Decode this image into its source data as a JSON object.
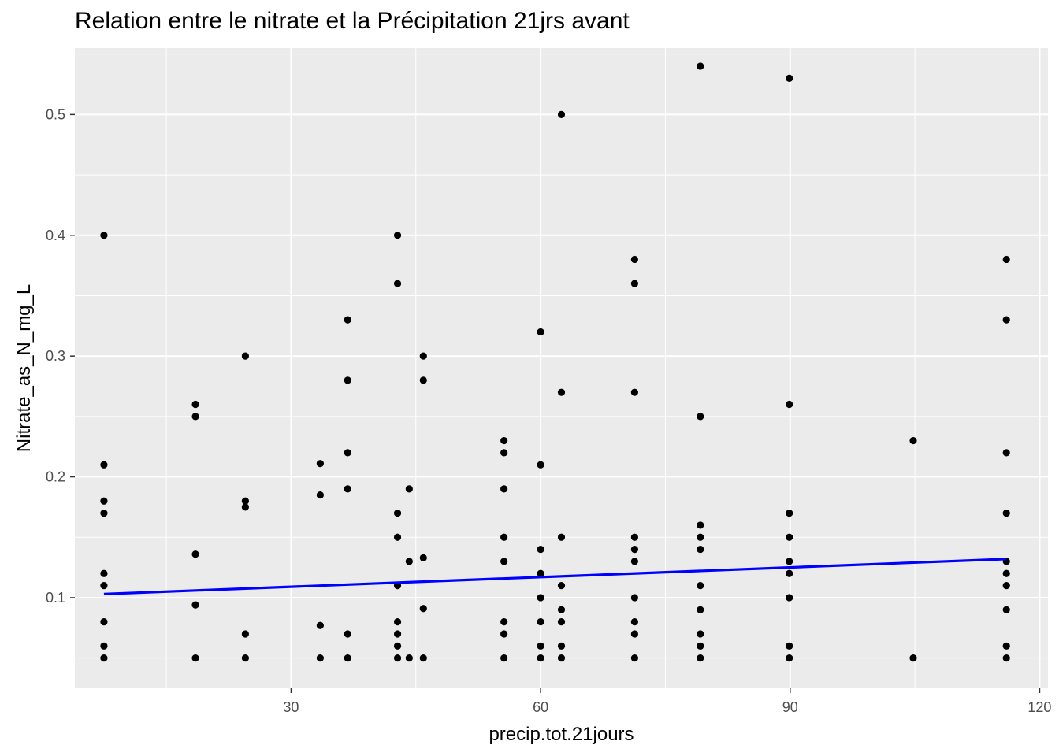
{
  "chart_data": {
    "type": "scatter",
    "title": "Relation entre le nitrate et la Précipitation 21jrs avant",
    "xlabel": "precip.tot.21jours",
    "ylabel": "Nitrate_as_N_mg_L",
    "xlim": [
      4,
      121
    ],
    "ylim": [
      0.025,
      0.555
    ],
    "x_ticks": [
      30,
      60,
      90,
      120
    ],
    "x_tick_labels": [
      "30",
      "60",
      "90",
      "120"
    ],
    "y_ticks": [
      0.1,
      0.2,
      0.3,
      0.4,
      0.5
    ],
    "y_tick_labels": [
      "0.1",
      "0.2",
      "0.3",
      "0.4",
      "0.5"
    ],
    "grid": true,
    "legend": "none",
    "colors": {
      "panel": "#ebebeb",
      "grid": "#ffffff",
      "point": "#000000",
      "trend": "#0000ff"
    },
    "points": [
      [
        7.5,
        0.4
      ],
      [
        7.5,
        0.21
      ],
      [
        7.5,
        0.18
      ],
      [
        7.5,
        0.17
      ],
      [
        7.5,
        0.12
      ],
      [
        7.5,
        0.11
      ],
      [
        7.5,
        0.08
      ],
      [
        7.5,
        0.06
      ],
      [
        7.5,
        0.05
      ],
      [
        18.5,
        0.26
      ],
      [
        18.5,
        0.25
      ],
      [
        18.5,
        0.136
      ],
      [
        18.5,
        0.094
      ],
      [
        18.5,
        0.05
      ],
      [
        24.5,
        0.3
      ],
      [
        24.5,
        0.18
      ],
      [
        24.5,
        0.175
      ],
      [
        24.5,
        0.07
      ],
      [
        24.5,
        0.05
      ],
      [
        33.5,
        0.211
      ],
      [
        33.5,
        0.185
      ],
      [
        33.5,
        0.077
      ],
      [
        33.5,
        0.05
      ],
      [
        36.8,
        0.33
      ],
      [
        36.8,
        0.28
      ],
      [
        36.8,
        0.22
      ],
      [
        36.8,
        0.19
      ],
      [
        36.8,
        0.07
      ],
      [
        36.8,
        0.05
      ],
      [
        42.8,
        0.4
      ],
      [
        42.8,
        0.36
      ],
      [
        42.8,
        0.17
      ],
      [
        42.8,
        0.15
      ],
      [
        42.8,
        0.11
      ],
      [
        42.8,
        0.08
      ],
      [
        42.8,
        0.07
      ],
      [
        42.8,
        0.06
      ],
      [
        42.8,
        0.05
      ],
      [
        44.2,
        0.19
      ],
      [
        44.2,
        0.13
      ],
      [
        44.2,
        0.05
      ],
      [
        45.9,
        0.3
      ],
      [
        45.9,
        0.28
      ],
      [
        45.9,
        0.133
      ],
      [
        45.9,
        0.091
      ],
      [
        45.9,
        0.05
      ],
      [
        55.6,
        0.23
      ],
      [
        55.6,
        0.22
      ],
      [
        55.6,
        0.19
      ],
      [
        55.6,
        0.15
      ],
      [
        55.6,
        0.13
      ],
      [
        55.6,
        0.08
      ],
      [
        55.6,
        0.07
      ],
      [
        55.6,
        0.05
      ],
      [
        60.0,
        0.32
      ],
      [
        60.0,
        0.21
      ],
      [
        60.0,
        0.14
      ],
      [
        60.0,
        0.12
      ],
      [
        60.0,
        0.1
      ],
      [
        60.0,
        0.08
      ],
      [
        60.0,
        0.06
      ],
      [
        60.0,
        0.05
      ],
      [
        62.5,
        0.5
      ],
      [
        62.5,
        0.27
      ],
      [
        62.5,
        0.15
      ],
      [
        62.5,
        0.11
      ],
      [
        62.5,
        0.09
      ],
      [
        62.5,
        0.08
      ],
      [
        62.5,
        0.06
      ],
      [
        62.5,
        0.05
      ],
      [
        71.3,
        0.38
      ],
      [
        71.3,
        0.36
      ],
      [
        71.3,
        0.27
      ],
      [
        71.3,
        0.15
      ],
      [
        71.3,
        0.14
      ],
      [
        71.3,
        0.13
      ],
      [
        71.3,
        0.1
      ],
      [
        71.3,
        0.08
      ],
      [
        71.3,
        0.07
      ],
      [
        71.3,
        0.05
      ],
      [
        79.2,
        0.54
      ],
      [
        79.2,
        0.25
      ],
      [
        79.2,
        0.16
      ],
      [
        79.2,
        0.15
      ],
      [
        79.2,
        0.14
      ],
      [
        79.2,
        0.11
      ],
      [
        79.2,
        0.09
      ],
      [
        79.2,
        0.07
      ],
      [
        79.2,
        0.06
      ],
      [
        79.2,
        0.05
      ],
      [
        89.9,
        0.53
      ],
      [
        89.9,
        0.26
      ],
      [
        89.9,
        0.17
      ],
      [
        89.9,
        0.15
      ],
      [
        89.9,
        0.13
      ],
      [
        89.9,
        0.12
      ],
      [
        89.9,
        0.1
      ],
      [
        89.9,
        0.06
      ],
      [
        89.9,
        0.05
      ],
      [
        104.8,
        0.23
      ],
      [
        104.8,
        0.05
      ],
      [
        116.0,
        0.38
      ],
      [
        116.0,
        0.33
      ],
      [
        116.0,
        0.22
      ],
      [
        116.0,
        0.17
      ],
      [
        116.0,
        0.13
      ],
      [
        116.0,
        0.12
      ],
      [
        116.0,
        0.11
      ],
      [
        116.0,
        0.09
      ],
      [
        116.0,
        0.06
      ],
      [
        116.0,
        0.05
      ]
    ],
    "trend_line": {
      "x": [
        7.5,
        116.0
      ],
      "y": [
        0.103,
        0.132
      ]
    }
  }
}
